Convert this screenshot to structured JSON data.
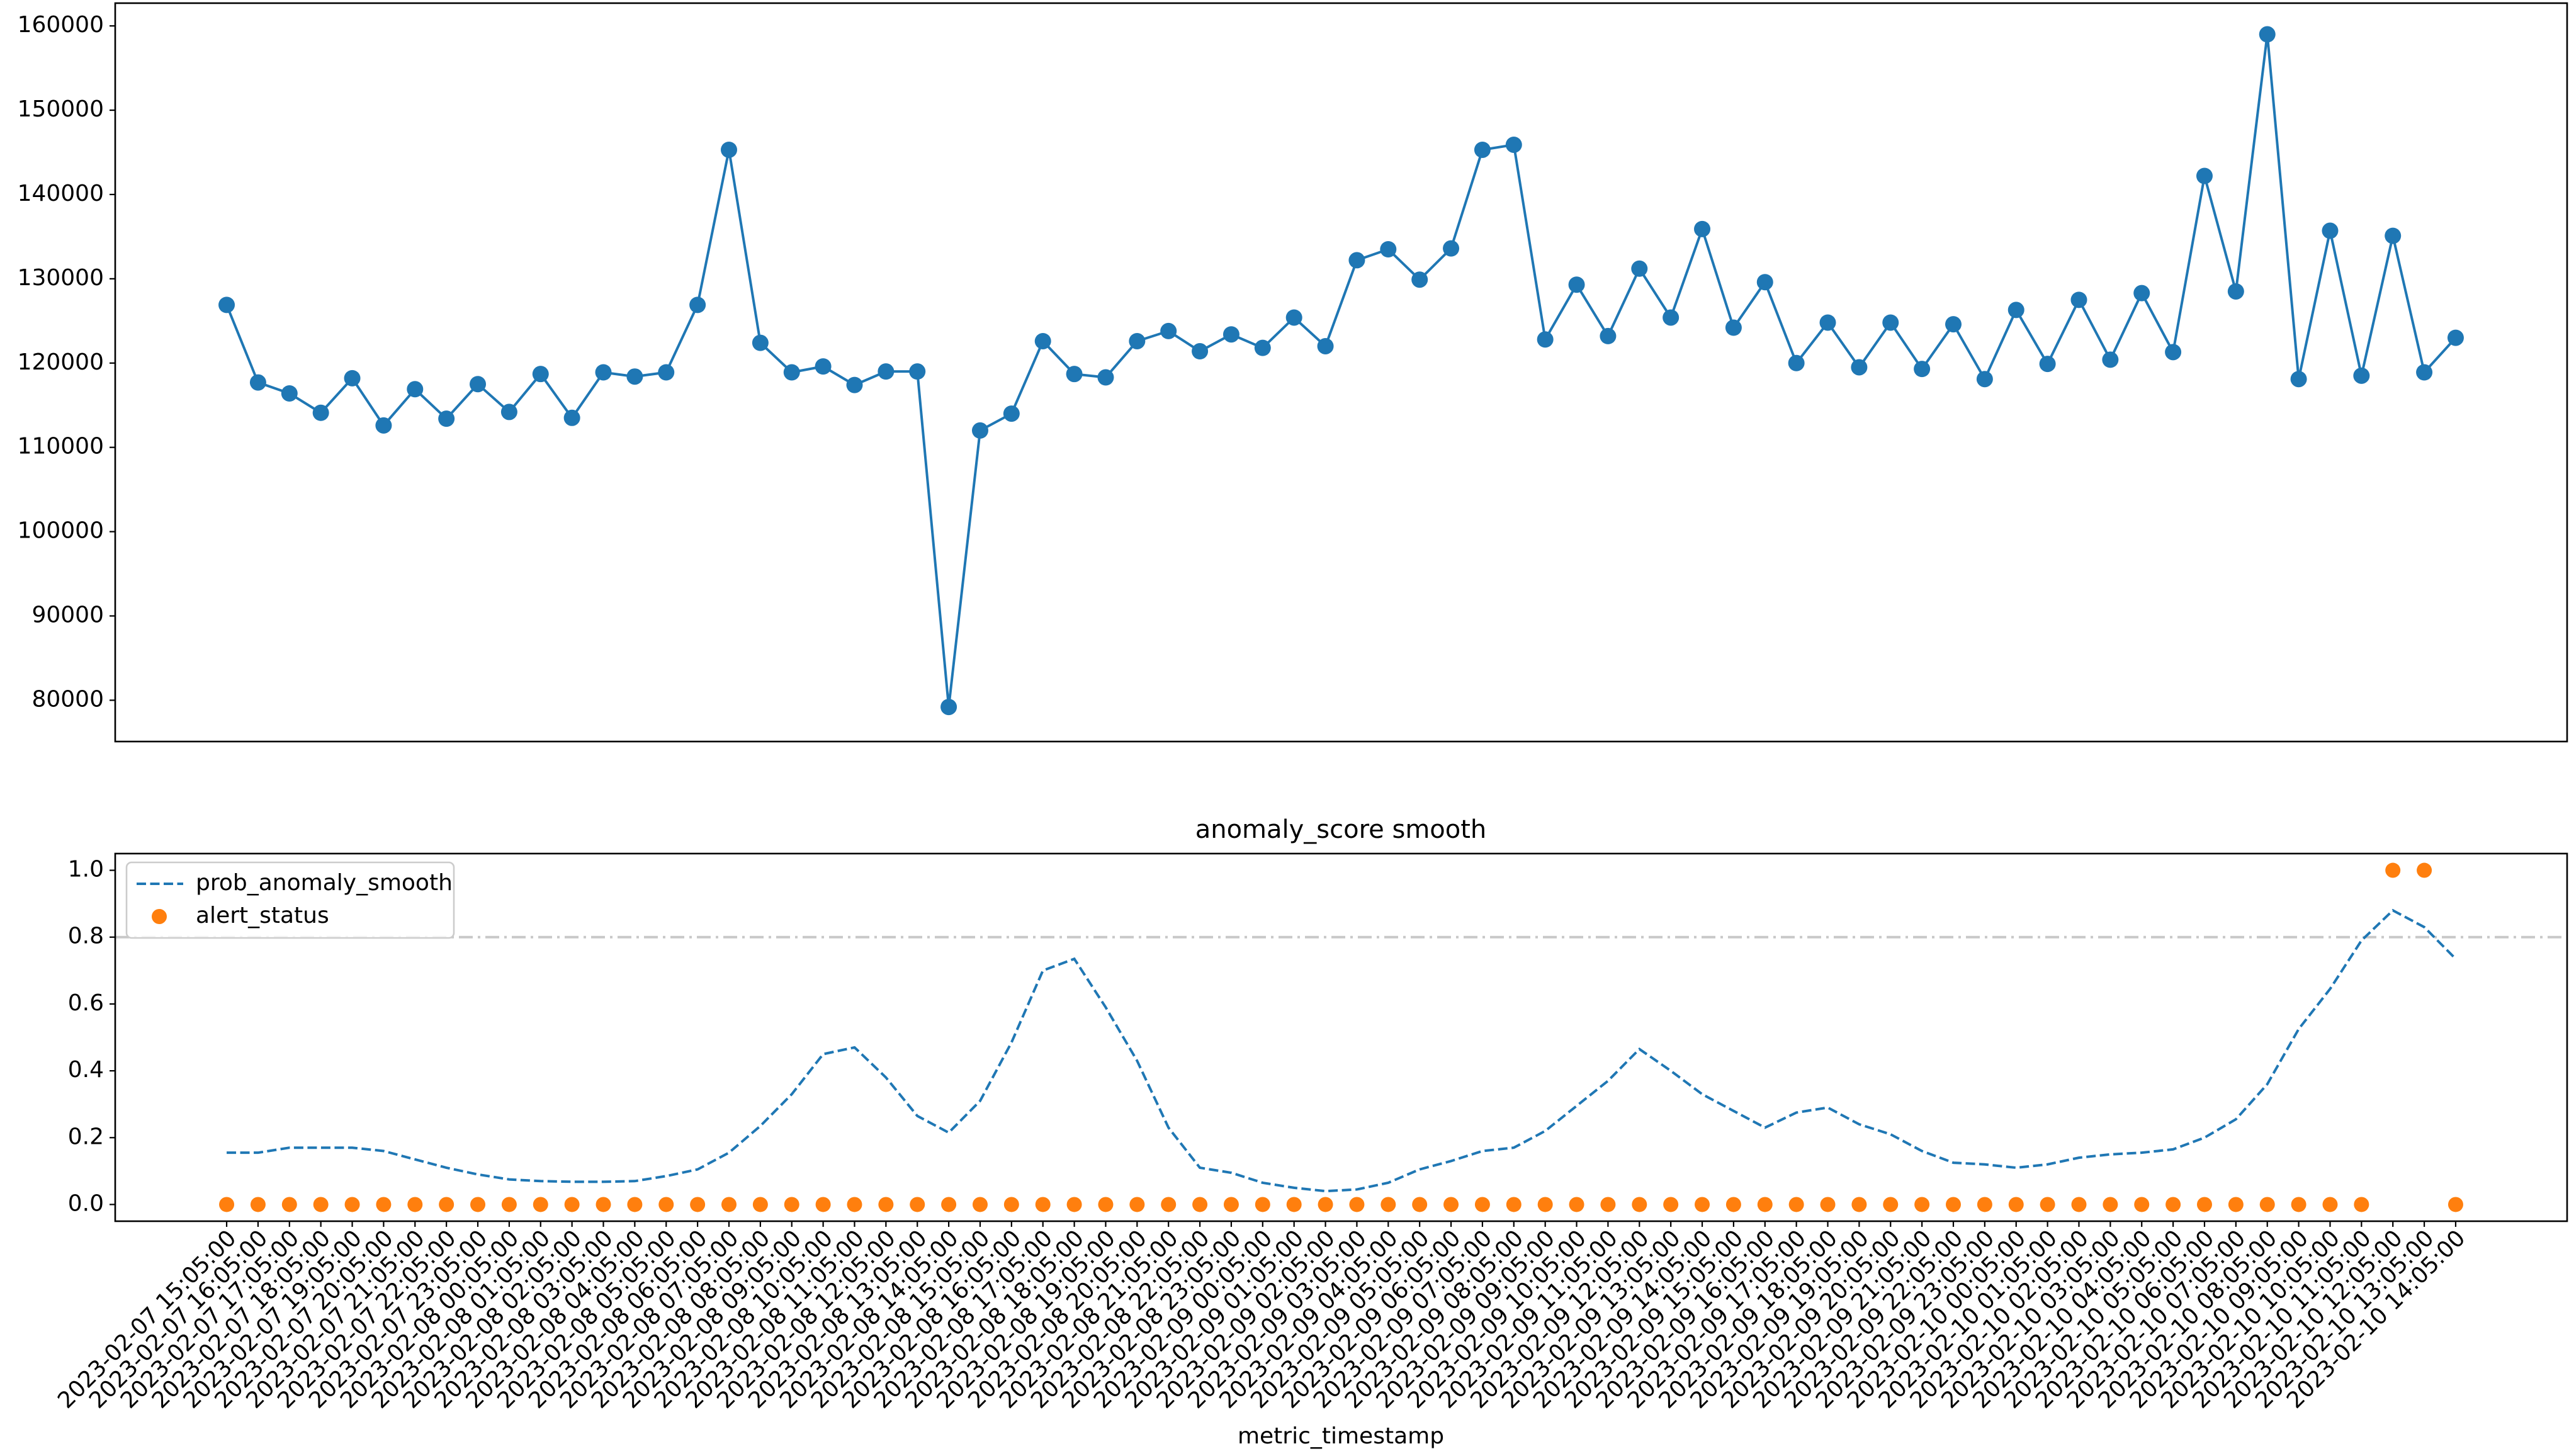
{
  "chart_data": [
    {
      "type": "line",
      "series": [
        {
          "color": "#1f77b4",
          "values": [
            126900,
            117700,
            116400,
            114100,
            118200,
            112600,
            116900,
            113400,
            117500,
            114200,
            118700,
            113500,
            118900,
            118400,
            118900,
            126900,
            145300,
            122400,
            118900,
            119600,
            117400,
            119000,
            119000,
            79200,
            112000,
            114000,
            122600,
            118700,
            118300,
            122600,
            123800,
            121400,
            123400,
            121800,
            125400,
            122000,
            132200,
            133500,
            129900,
            133600,
            145300,
            145900,
            122800,
            129300,
            123200,
            131200,
            125400,
            135900,
            124200,
            129600,
            120000,
            124800,
            119500,
            124800,
            119300,
            124600,
            118100,
            126300,
            119900,
            127500,
            120400,
            128300,
            121300,
            142200,
            128500,
            159000,
            118100,
            135700,
            118500,
            135100,
            118900,
            123000
          ]
        }
      ],
      "ylim": [
        75100,
        162700
      ],
      "yticks": [
        80000,
        90000,
        100000,
        110000,
        120000,
        130000,
        140000,
        150000,
        160000
      ]
    },
    {
      "type": "line",
      "title": "anomaly_score smooth",
      "x_label": "metric_timestamp",
      "categories": [
        "2023-02-07 15:05:00",
        "2023-02-07 16:05:00",
        "2023-02-07 17:05:00",
        "2023-02-07 18:05:00",
        "2023-02-07 19:05:00",
        "2023-02-07 20:05:00",
        "2023-02-07 21:05:00",
        "2023-02-07 22:05:00",
        "2023-02-07 23:05:00",
        "2023-02-08 00:05:00",
        "2023-02-08 01:05:00",
        "2023-02-08 02:05:00",
        "2023-02-08 03:05:00",
        "2023-02-08 04:05:00",
        "2023-02-08 05:05:00",
        "2023-02-08 06:05:00",
        "2023-02-08 07:05:00",
        "2023-02-08 08:05:00",
        "2023-02-08 09:05:00",
        "2023-02-08 10:05:00",
        "2023-02-08 11:05:00",
        "2023-02-08 12:05:00",
        "2023-02-08 13:05:00",
        "2023-02-08 14:05:00",
        "2023-02-08 15:05:00",
        "2023-02-08 16:05:00",
        "2023-02-08 17:05:00",
        "2023-02-08 18:05:00",
        "2023-02-08 19:05:00",
        "2023-02-08 20:05:00",
        "2023-02-08 21:05:00",
        "2023-02-08 22:05:00",
        "2023-02-08 23:05:00",
        "2023-02-09 00:05:00",
        "2023-02-09 01:05:00",
        "2023-02-09 02:05:00",
        "2023-02-09 03:05:00",
        "2023-02-09 04:05:00",
        "2023-02-09 05:05:00",
        "2023-02-09 06:05:00",
        "2023-02-09 07:05:00",
        "2023-02-09 08:05:00",
        "2023-02-09 09:05:00",
        "2023-02-09 10:05:00",
        "2023-02-09 11:05:00",
        "2023-02-09 12:05:00",
        "2023-02-09 13:05:00",
        "2023-02-09 14:05:00",
        "2023-02-09 15:05:00",
        "2023-02-09 16:05:00",
        "2023-02-09 17:05:00",
        "2023-02-09 18:05:00",
        "2023-02-09 19:05:00",
        "2023-02-09 20:05:00",
        "2023-02-09 21:05:00",
        "2023-02-09 22:05:00",
        "2023-02-09 23:05:00",
        "2023-02-10 00:05:00",
        "2023-02-10 01:05:00",
        "2023-02-10 02:05:00",
        "2023-02-10 03:05:00",
        "2023-02-10 04:05:00",
        "2023-02-10 05:05:00",
        "2023-02-10 06:05:00",
        "2023-02-10 07:05:00",
        "2023-02-10 08:05:00",
        "2023-02-10 09:05:00",
        "2023-02-10 10:05:00",
        "2023-02-10 11:05:00",
        "2023-02-10 12:05:00",
        "2023-02-10 13:05:00",
        "2023-02-10 14:05:00"
      ],
      "series": [
        {
          "name": "prob_anomaly_smooth",
          "color": "#1f77b4",
          "dashed": true,
          "values": [
            0.155,
            0.155,
            0.17,
            0.17,
            0.17,
            0.16,
            0.135,
            0.11,
            0.09,
            0.075,
            0.07,
            0.068,
            0.068,
            0.07,
            0.085,
            0.105,
            0.155,
            0.235,
            0.33,
            0.45,
            0.47,
            0.38,
            0.265,
            0.215,
            0.31,
            0.485,
            0.7,
            0.735,
            0.59,
            0.43,
            0.23,
            0.11,
            0.095,
            0.065,
            0.05,
            0.04,
            0.045,
            0.065,
            0.105,
            0.13,
            0.16,
            0.17,
            0.22,
            0.295,
            0.37,
            0.465,
            0.4,
            0.33,
            0.28,
            0.23,
            0.275,
            0.29,
            0.24,
            0.21,
            0.16,
            0.125,
            0.12,
            0.11,
            0.12,
            0.14,
            0.15,
            0.155,
            0.165,
            0.2,
            0.255,
            0.36,
            0.525,
            0.645,
            0.79,
            0.88,
            0.83,
            0.735
          ]
        },
        {
          "name": "alert_status",
          "color": "#ff7f0e",
          "type": "scatter",
          "values": [
            0,
            0,
            0,
            0,
            0,
            0,
            0,
            0,
            0,
            0,
            0,
            0,
            0,
            0,
            0,
            0,
            0,
            0,
            0,
            0,
            0,
            0,
            0,
            0,
            0,
            0,
            0,
            0,
            0,
            0,
            0,
            0,
            0,
            0,
            0,
            0,
            0,
            0,
            0,
            0,
            0,
            0,
            0,
            0,
            0,
            0,
            0,
            0,
            0,
            0,
            0,
            0,
            0,
            0,
            0,
            0,
            0,
            0,
            0,
            0,
            0,
            0,
            0,
            0,
            0,
            0,
            0,
            0,
            0,
            1,
            1,
            0
          ]
        }
      ],
      "hline": 0.8,
      "legend": "upper left",
      "ylim": [
        -0.05,
        1.05
      ],
      "yticks": [
        {
          "value": 0,
          "label": "0.0"
        },
        {
          "value": 0.2,
          "label": "0.2"
        },
        {
          "value": 0.4,
          "label": "0.4"
        },
        {
          "value": 0.6,
          "label": "0.6"
        },
        {
          "value": 0.8,
          "label": "0.8"
        },
        {
          "value": 1,
          "label": "1.0"
        }
      ]
    }
  ]
}
